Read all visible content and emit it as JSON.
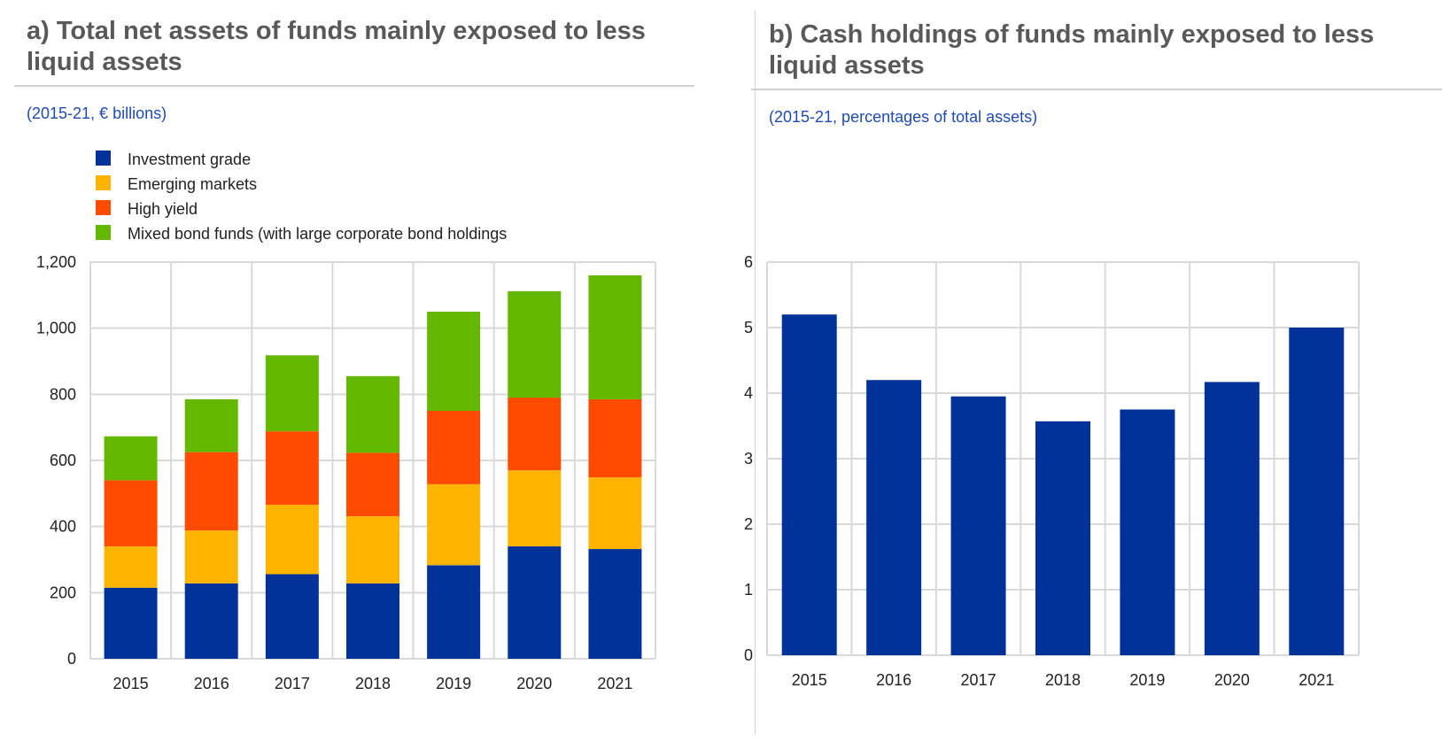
{
  "panel_a": {
    "title": "a) Total net assets of funds mainly exposed to less liquid assets",
    "subtitle": "(2015-21, € billions)"
  },
  "panel_b": {
    "title": "b) Cash holdings of funds mainly exposed to less liquid assets",
    "subtitle": "(2015-21, percentages of total assets)"
  },
  "chart_data": [
    {
      "type": "bar",
      "stacked": true,
      "title": "a) Total net assets of funds mainly exposed to less liquid assets",
      "subtitle": "(2015-21, € billions)",
      "categories": [
        "2015",
        "2016",
        "2017",
        "2018",
        "2019",
        "2020",
        "2021"
      ],
      "series": [
        {
          "name": "Investment grade",
          "color": "#003299",
          "values": [
            215,
            228,
            256,
            228,
            283,
            340,
            332
          ]
        },
        {
          "name": "Emerging markets",
          "color": "#ffb400",
          "values": [
            125,
            160,
            210,
            203,
            245,
            230,
            217
          ]
        },
        {
          "name": "High yield",
          "color": "#ff4b00",
          "values": [
            200,
            237,
            222,
            192,
            222,
            220,
            236
          ]
        },
        {
          "name": "Mixed bond funds (with large corporate bond holdings",
          "color": "#65b800",
          "values": [
            133,
            160,
            230,
            232,
            300,
            322,
            375
          ]
        }
      ],
      "ylim": [
        0,
        1200
      ],
      "yticks": [
        0,
        200,
        400,
        600,
        800,
        1000,
        1200
      ],
      "ytick_labels": [
        "0",
        "200",
        "400",
        "600",
        "800",
        "1,000",
        "1,200"
      ],
      "grid": true,
      "legend": "top-left"
    },
    {
      "type": "bar",
      "title": "b) Cash holdings of funds mainly exposed to less liquid assets",
      "subtitle": "(2015-21, percentages of total assets)",
      "categories": [
        "2015",
        "2016",
        "2017",
        "2018",
        "2019",
        "2020",
        "2021"
      ],
      "values": [
        5.2,
        4.2,
        3.95,
        3.57,
        3.75,
        4.17,
        5.0
      ],
      "color": "#003299",
      "ylim": [
        0,
        6
      ],
      "yticks": [
        0,
        1,
        2,
        3,
        4,
        5,
        6
      ],
      "ytick_labels": [
        "0",
        "1",
        "2",
        "3",
        "4",
        "5",
        "6"
      ],
      "grid": true
    }
  ]
}
